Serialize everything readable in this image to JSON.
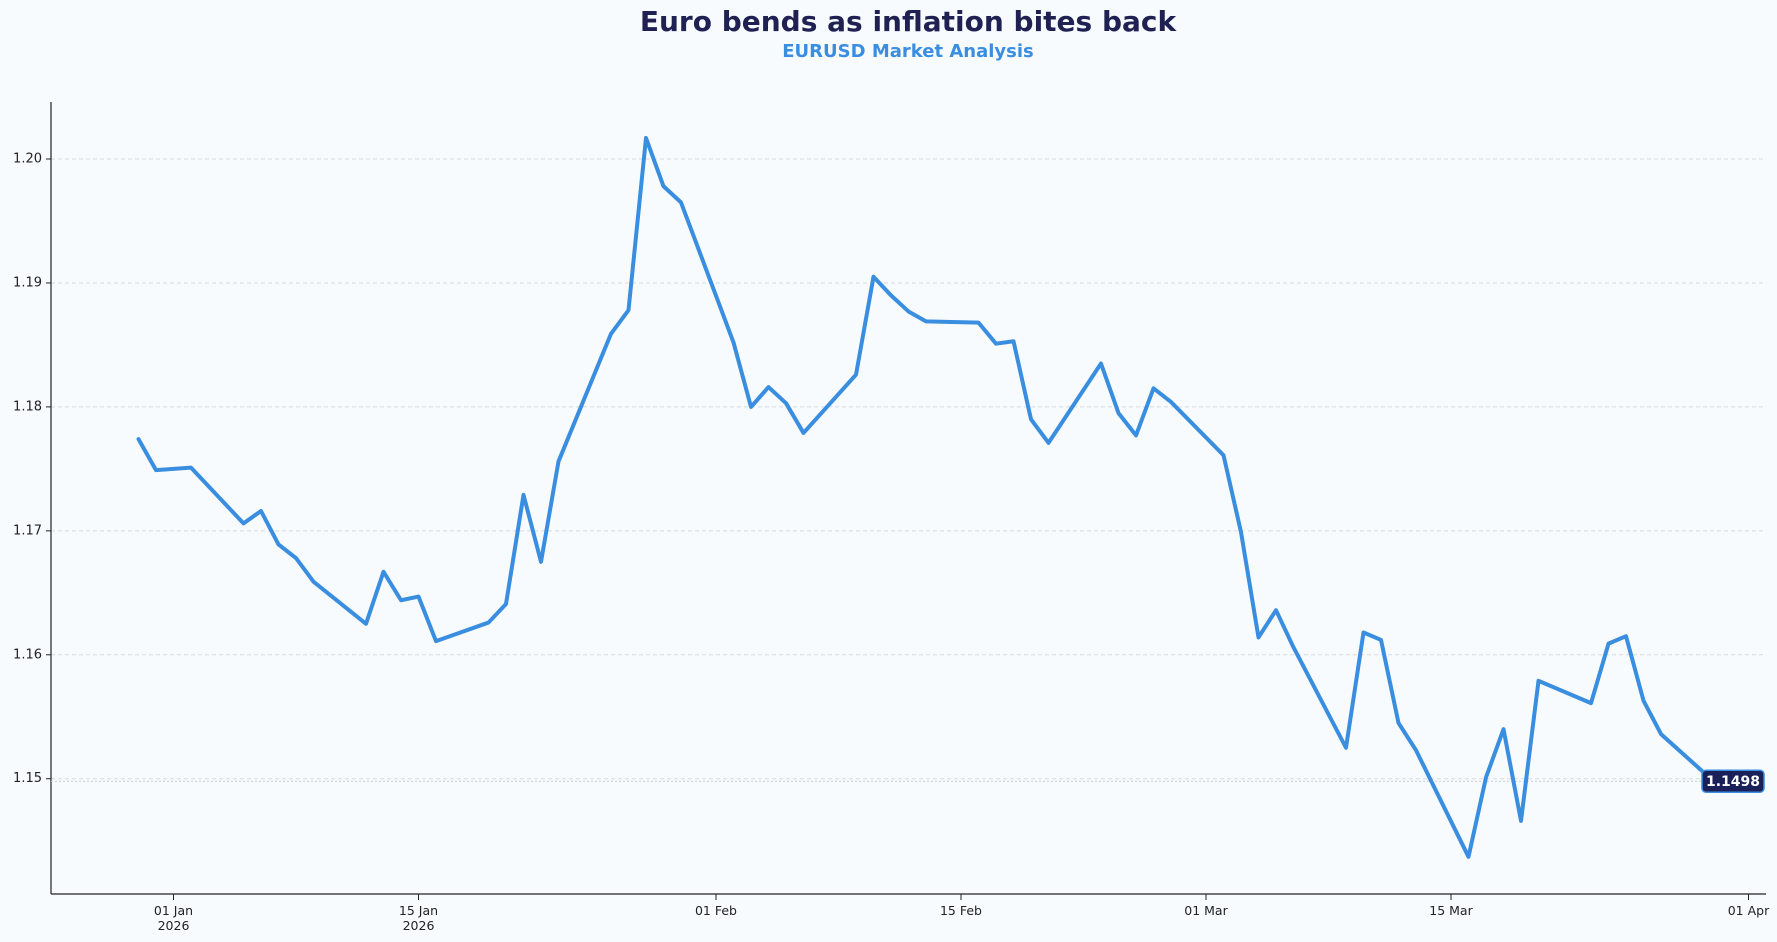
{
  "chart_data": {
    "type": "line",
    "title": "Euro bends as inflation bites back",
    "subtitle": "EURUSD Market Analysis",
    "x": [
      "2025-12-30",
      "2025-12-31",
      "2026-01-02",
      "2026-01-05",
      "2026-01-06",
      "2026-01-07",
      "2026-01-08",
      "2026-01-09",
      "2026-01-12",
      "2026-01-13",
      "2026-01-14",
      "2026-01-15",
      "2026-01-16",
      "2026-01-19",
      "2026-01-20",
      "2026-01-21",
      "2026-01-22",
      "2026-01-23",
      "2026-01-26",
      "2026-01-27",
      "2026-01-28",
      "2026-01-29",
      "2026-01-30",
      "2026-02-02",
      "2026-02-03",
      "2026-02-04",
      "2026-02-05",
      "2026-02-06",
      "2026-02-09",
      "2026-02-10",
      "2026-02-11",
      "2026-02-12",
      "2026-02-13",
      "2026-02-16",
      "2026-02-17",
      "2026-02-18",
      "2026-02-19",
      "2026-02-20",
      "2026-02-23",
      "2026-02-24",
      "2026-02-25",
      "2026-02-26",
      "2026-02-27",
      "2026-03-02",
      "2026-03-03",
      "2026-03-04",
      "2026-03-05",
      "2026-03-06",
      "2026-03-09",
      "2026-03-10",
      "2026-03-11",
      "2026-03-12",
      "2026-03-13",
      "2026-03-16",
      "2026-03-17",
      "2026-03-18",
      "2026-03-19",
      "2026-03-20",
      "2026-03-23",
      "2026-03-24",
      "2026-03-25",
      "2026-03-26",
      "2026-03-27",
      "2026-03-30"
    ],
    "values": [
      1.1774,
      1.1749,
      1.1751,
      1.1706,
      1.1716,
      1.1689,
      1.1678,
      1.1659,
      1.1625,
      1.1667,
      1.1644,
      1.1647,
      1.1611,
      1.1626,
      1.1641,
      1.1729,
      1.1675,
      1.1756,
      1.1859,
      1.1878,
      1.2017,
      1.1978,
      1.1965,
      1.1852,
      1.18,
      1.1816,
      1.1803,
      1.1779,
      1.1826,
      1.1905,
      1.189,
      1.1877,
      1.1869,
      1.1868,
      1.1851,
      1.1853,
      1.179,
      1.1771,
      1.1835,
      1.1795,
      1.1777,
      1.1815,
      1.1804,
      1.1761,
      1.1699,
      1.1614,
      1.1636,
      1.1606,
      1.1525,
      1.1618,
      1.1612,
      1.1545,
      1.1523,
      1.1437,
      1.1501,
      1.154,
      1.1466,
      1.1579,
      1.1561,
      1.1609,
      1.1615,
      1.1563,
      1.1536,
      1.1498
    ],
    "color": "#3a8ee0",
    "xlim": [
      "2025-12-25",
      "2026-04-02"
    ],
    "xticks": [
      {
        "value": "2026-01-01",
        "label": "01 Jan\n2026"
      },
      {
        "value": "2026-01-15",
        "label": "15 Jan\n2026"
      },
      {
        "value": "2026-02-01",
        "label": "01 Feb"
      },
      {
        "value": "2026-02-15",
        "label": "15 Feb"
      },
      {
        "value": "2026-03-01",
        "label": "01 Mar"
      },
      {
        "value": "2026-03-15",
        "label": "15 Mar"
      },
      {
        "value": "2026-04-01",
        "label": "01 Apr"
      }
    ],
    "ylim": [
      1.1407,
      1.2046
    ],
    "yticks": [
      1.15,
      1.16,
      1.17,
      1.18,
      1.19,
      {
        "value": 1.2,
        "label": "1.20"
      }
    ],
    "grid": true
  }
}
